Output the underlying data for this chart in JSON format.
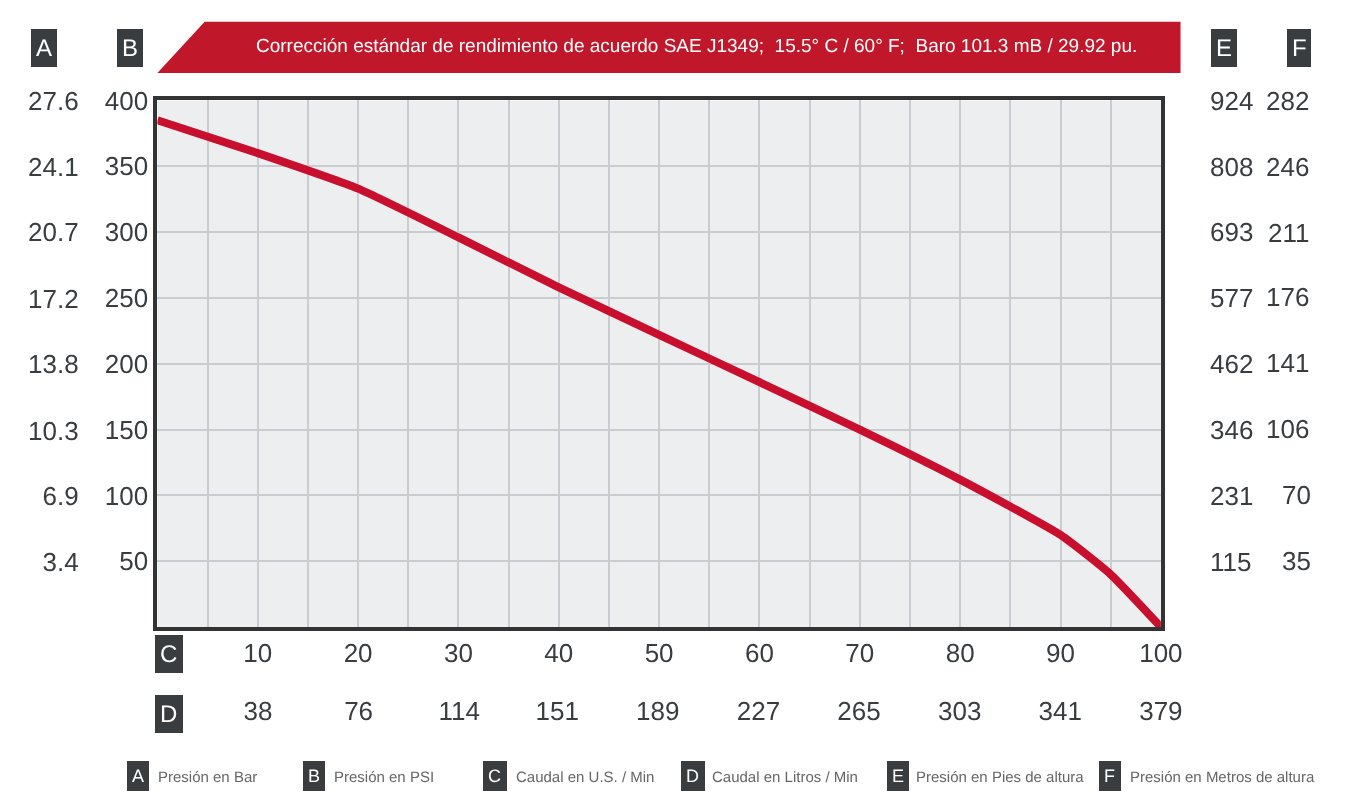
{
  "chart_data": {
    "type": "line",
    "title": "Corrección estándar de rendimiento de acuerdo SAE J1349;  15.5° C / 60° F;  Baro 101.3 mB / 29.92 pu.",
    "xlabel": "C",
    "x2label": "D",
    "ylabel": "B",
    "y2label": "A",
    "y3label": "E",
    "x": [
      0,
      10,
      20,
      30,
      40,
      50,
      60,
      70,
      80,
      90,
      95,
      100
    ],
    "series": [
      {
        "color": "#c8102e",
        "values": [
          385,
          360,
          333,
          296,
          258,
          222,
          186,
          150,
          112,
          70,
          40,
          0
        ]
      }
    ],
    "xlim": [
      0,
      100
    ],
    "xticks": [
      {
        "value": 5,
        "label": null
      },
      10,
      {
        "value": 15,
        "label": null
      },
      20,
      {
        "value": 25,
        "label": null
      },
      30,
      {
        "value": 35,
        "label": null
      },
      40,
      {
        "value": 45,
        "label": null
      },
      50,
      {
        "value": 55,
        "label": null
      },
      60,
      {
        "value": 65,
        "label": null
      },
      70,
      {
        "value": 75,
        "label": null
      },
      80,
      {
        "value": 85,
        "label": null
      },
      90,
      {
        "value": 95,
        "label": null
      },
      100
    ],
    "x2lim": [
      0,
      379
    ],
    "x2ticks": [
      38,
      76,
      114,
      151,
      189,
      227,
      265,
      303,
      341,
      379
    ],
    "ylim": [
      0,
      400
    ],
    "yticks": [
      50,
      100,
      150,
      200,
      250,
      300,
      350,
      400
    ],
    "y2lim": [
      0,
      27.6
    ],
    "y2ticks": [
      3.4,
      6.9,
      10.3,
      13.8,
      17.2,
      20.7,
      24.1,
      27.6
    ],
    "y3lim": [
      0,
      924
    ],
    "y3ticks": [
      115,
      231,
      346,
      462,
      577,
      693,
      808,
      924
    ],
    "grid": true,
    "marker": "none",
    "line_style": "solid",
    "annotations": [
      "Presión en Bar",
      "Presión en PSI",
      "Caudal en U.S. / Min",
      "Caudal en Litros / Min",
      "Presión en Pies de altura",
      "Presión en Metros de altura",
      "F",
      "35",
      "70",
      "106",
      "141",
      "176",
      "211",
      "246",
      "282"
    ]
  }
}
